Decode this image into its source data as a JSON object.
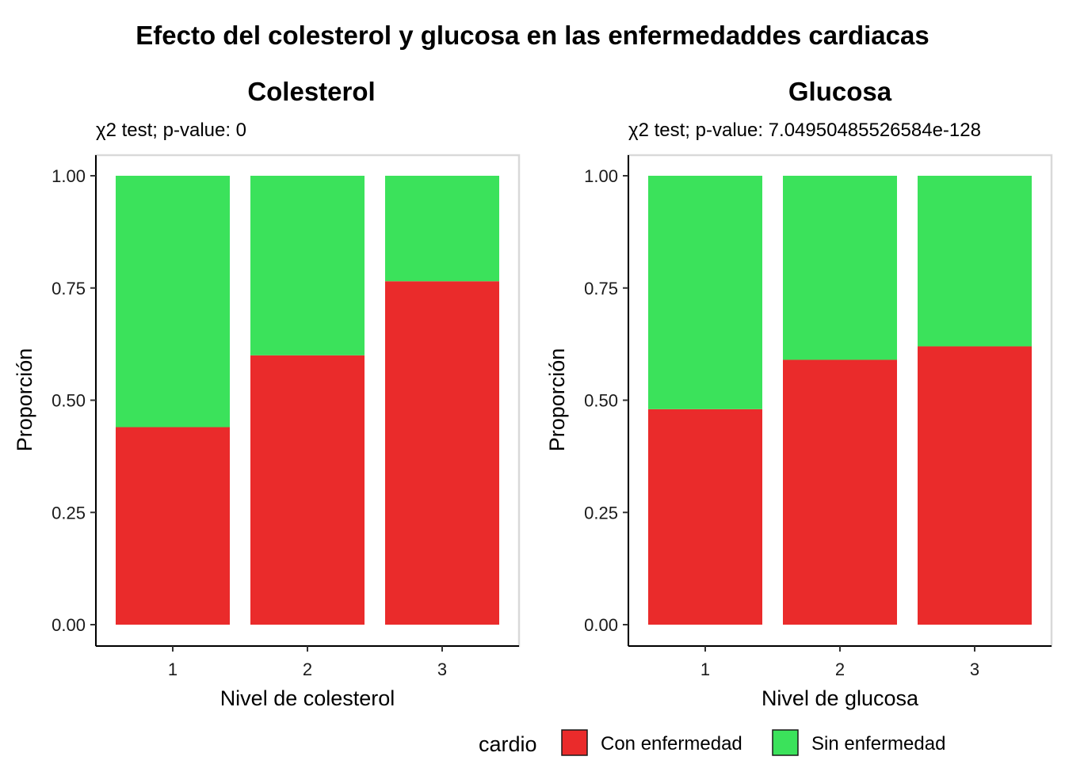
{
  "title": "Efecto del colesterol y glucosa en las enfermedaddes cardiacas",
  "legend": {
    "title": "cardio",
    "items": [
      {
        "label": "Con enfermedad",
        "color": "#EA2B2B"
      },
      {
        "label": "Sin enfermedad",
        "color": "#3BE25B"
      }
    ]
  },
  "chart_data": [
    {
      "type": "bar",
      "stacked": true,
      "title": "Colesterol",
      "subtitle": "χ2 test; p-value: 0",
      "xlabel": "Nivel de colesterol",
      "ylabel": "Proporción",
      "ylim": [
        0,
        1
      ],
      "yticks": [
        "0.00",
        "0.25",
        "0.50",
        "0.75",
        "1.00"
      ],
      "categories": [
        "1",
        "2",
        "3"
      ],
      "series": [
        {
          "name": "Con enfermedad",
          "values": [
            0.44,
            0.6,
            0.765
          ],
          "color": "#EA2B2B"
        },
        {
          "name": "Sin enfermedad",
          "values": [
            0.56,
            0.4,
            0.235
          ],
          "color": "#3BE25B"
        }
      ],
      "grid": false,
      "legend_position": "bottom"
    },
    {
      "type": "bar",
      "stacked": true,
      "title": "Glucosa",
      "subtitle": "χ2 test; p-value: 7.04950485526584e-128",
      "xlabel": "Nivel de glucosa",
      "ylabel": "Proporción",
      "ylim": [
        0,
        1
      ],
      "yticks": [
        "0.00",
        "0.25",
        "0.50",
        "0.75",
        "1.00"
      ],
      "categories": [
        "1",
        "2",
        "3"
      ],
      "series": [
        {
          "name": "Con enfermedad",
          "values": [
            0.48,
            0.59,
            0.62
          ],
          "color": "#EA2B2B"
        },
        {
          "name": "Sin enfermedad",
          "values": [
            0.52,
            0.41,
            0.38
          ],
          "color": "#3BE25B"
        }
      ],
      "grid": false,
      "legend_position": "bottom"
    }
  ]
}
